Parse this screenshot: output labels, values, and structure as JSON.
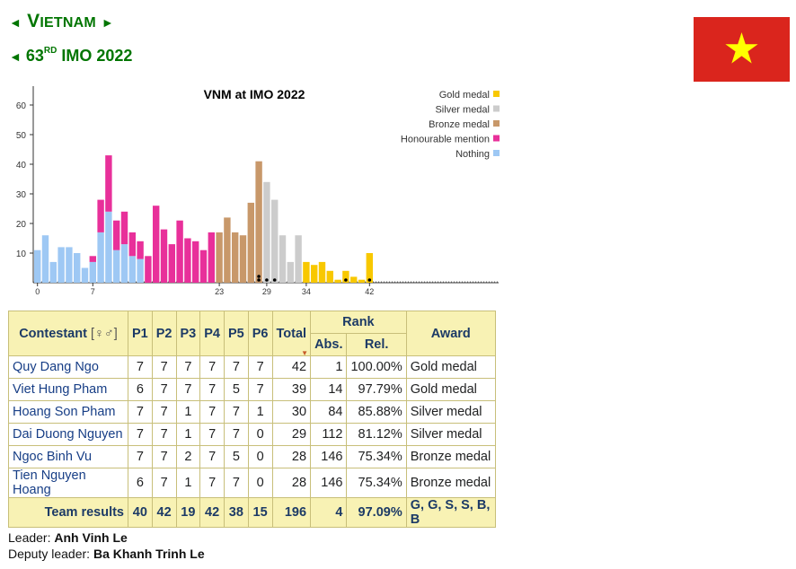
{
  "nav": {
    "country_first": "V",
    "country_rest": "IETNAM",
    "imo_number": "63",
    "imo_suffix": "RD",
    "imo_label": "IMO 2022",
    "arrow_left": "◄",
    "arrow_right": "►"
  },
  "flag": {
    "red": "#da251d",
    "yellow": "#ffff00"
  },
  "chart_data": {
    "type": "bar",
    "title": "VNM at IMO 2022",
    "xlabel": "",
    "ylabel": "",
    "ylim": [
      0,
      65
    ],
    "yticks": [
      "10",
      "20",
      "30",
      "40",
      "50",
      "60"
    ],
    "xticks": [
      "0",
      "7",
      "23",
      "29",
      "34",
      "42"
    ],
    "legend": [
      "Gold medal",
      "Silver medal",
      "Bronze medal",
      "Honourable mention",
      "Nothing"
    ],
    "legend_colors": [
      "#f8c800",
      "#cccccc",
      "#c8986a",
      "#e8309a",
      "#9ec8f4"
    ],
    "series": [
      {
        "name": "Nothing",
        "values": [
          11,
          16,
          7,
          12,
          12,
          10,
          5,
          7,
          17,
          24,
          11,
          13,
          9,
          8,
          0,
          0,
          0,
          0,
          0,
          0,
          0,
          0,
          0,
          0,
          0,
          0,
          0,
          0,
          0,
          0,
          0,
          0,
          0,
          0,
          0,
          0,
          0,
          0,
          0,
          0,
          0,
          0,
          0
        ]
      },
      {
        "name": "Honourable mention",
        "values": [
          0,
          0,
          0,
          0,
          0,
          0,
          0,
          2,
          11,
          19,
          10,
          11,
          8,
          6,
          9,
          26,
          18,
          13,
          21,
          15,
          14,
          11,
          17,
          0,
          0,
          0,
          0,
          0,
          0,
          0,
          0,
          0,
          0,
          0,
          0,
          0,
          0,
          0,
          0,
          0,
          0,
          0,
          0
        ]
      },
      {
        "name": "Bronze medal",
        "values": [
          0,
          0,
          0,
          0,
          0,
          0,
          0,
          0,
          0,
          0,
          0,
          0,
          0,
          0,
          0,
          0,
          0,
          0,
          0,
          0,
          0,
          0,
          0,
          17,
          22,
          17,
          16,
          27,
          41,
          0,
          0,
          0,
          0,
          0,
          0,
          0,
          0,
          0,
          0,
          0,
          0,
          0,
          0
        ]
      },
      {
        "name": "Silver medal",
        "values": [
          0,
          0,
          0,
          0,
          0,
          0,
          0,
          0,
          0,
          0,
          0,
          0,
          0,
          0,
          0,
          0,
          0,
          0,
          0,
          0,
          0,
          0,
          0,
          0,
          0,
          0,
          0,
          0,
          0,
          34,
          28,
          16,
          7,
          16,
          0,
          0,
          0,
          0,
          0,
          0,
          0,
          0,
          0
        ]
      },
      {
        "name": "Gold medal",
        "values": [
          0,
          0,
          0,
          0,
          0,
          0,
          0,
          0,
          0,
          0,
          0,
          0,
          0,
          0,
          0,
          0,
          0,
          0,
          0,
          0,
          0,
          0,
          0,
          0,
          0,
          0,
          0,
          0,
          0,
          0,
          0,
          0,
          0,
          0,
          7,
          6,
          7,
          4,
          1,
          4,
          2,
          1,
          10
        ]
      }
    ],
    "markers": [
      28,
      28,
      29,
      30,
      39,
      42
    ]
  },
  "table": {
    "headers": {
      "contestant": "Contestant",
      "contestant_icon": "[♀♂]",
      "problems": [
        "P1",
        "P2",
        "P3",
        "P4",
        "P5",
        "P6"
      ],
      "total": "Total",
      "rank": "Rank",
      "abs": "Abs.",
      "rel": "Rel.",
      "award": "Award"
    },
    "rows": [
      {
        "name": "Quy Dang Ngo",
        "scores": [
          "7",
          "7",
          "7",
          "7",
          "7",
          "7"
        ],
        "total": "42",
        "abs": "1",
        "rel": "100.00%",
        "award": "Gold medal"
      },
      {
        "name": "Viet Hung Pham",
        "scores": [
          "6",
          "7",
          "7",
          "7",
          "5",
          "7"
        ],
        "total": "39",
        "abs": "14",
        "rel": "97.79%",
        "award": "Gold medal"
      },
      {
        "name": "Hoang Son Pham",
        "scores": [
          "7",
          "7",
          "1",
          "7",
          "7",
          "1"
        ],
        "total": "30",
        "abs": "84",
        "rel": "85.88%",
        "award": "Silver medal"
      },
      {
        "name": "Dai Duong Nguyen",
        "scores": [
          "7",
          "7",
          "1",
          "7",
          "7",
          "0"
        ],
        "total": "29",
        "abs": "112",
        "rel": "81.12%",
        "award": "Silver medal"
      },
      {
        "name": "Ngoc Binh Vu",
        "scores": [
          "7",
          "7",
          "2",
          "7",
          "5",
          "0"
        ],
        "total": "28",
        "abs": "146",
        "rel": "75.34%",
        "award": "Bronze medal"
      },
      {
        "name": "Tien Nguyen Hoang",
        "scores": [
          "6",
          "7",
          "1",
          "7",
          "7",
          "0"
        ],
        "total": "28",
        "abs": "146",
        "rel": "75.34%",
        "award": "Bronze medal"
      }
    ],
    "team": {
      "label": "Team results",
      "scores": [
        "40",
        "42",
        "19",
        "42",
        "38",
        "15"
      ],
      "total": "196",
      "abs": "4",
      "rel": "97.09%",
      "award": "G, G, S, S, B, B"
    }
  },
  "leaders": {
    "leader_label": "Leader:",
    "leader_name": "Anh Vinh Le",
    "deputy_label": "Deputy leader:",
    "deputy_name": "Ba Khanh Trinh Le"
  }
}
